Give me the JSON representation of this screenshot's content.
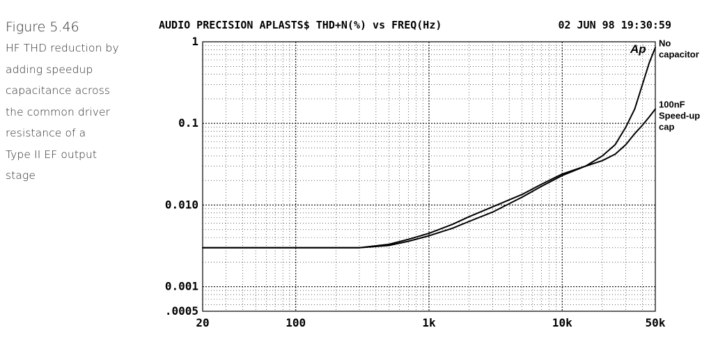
{
  "caption": {
    "title": "Figure 5.46",
    "lines": [
      "HF THD reduction by",
      "adding speedup",
      "capacitance across",
      "the common driver",
      "resistance of a",
      "Type II EF output",
      "stage"
    ]
  },
  "header": {
    "left": "AUDIO PRECISION APLASTS$ THD+N(%) vs FREQ(Hz)",
    "right": "02 JUN 98 19:30:59"
  },
  "logo": "Ap",
  "chart_data": {
    "type": "line",
    "xscale": "log",
    "yscale": "log",
    "xlim": [
      20,
      50000
    ],
    "ylim": [
      0.0005,
      1
    ],
    "grid": true,
    "x_tick_labels": [
      "20",
      "100",
      "1k",
      "10k",
      "50k"
    ],
    "x_tick_values": [
      20,
      100,
      1000,
      10000,
      50000
    ],
    "y_tick_labels": [
      "1",
      "0.1",
      "0.010",
      "0.001",
      ".0005"
    ],
    "y_tick_values": [
      1,
      0.1,
      0.01,
      0.001,
      0.0005
    ],
    "series": [
      {
        "name": "No capacitor",
        "x": [
          20,
          200,
          300,
          500,
          700,
          1000,
          1500,
          2000,
          3000,
          5000,
          7000,
          10000,
          15000,
          20000,
          25000,
          30000,
          35000,
          40000,
          45000,
          50000
        ],
        "y": [
          0.003,
          0.003,
          0.003,
          0.0032,
          0.0036,
          0.0042,
          0.0052,
          0.0063,
          0.0082,
          0.0125,
          0.017,
          0.023,
          0.03,
          0.04,
          0.055,
          0.09,
          0.15,
          0.3,
          0.55,
          0.85
        ]
      },
      {
        "name": "100nF Speed-up cap",
        "x": [
          20,
          200,
          300,
          500,
          700,
          1000,
          1500,
          2000,
          3000,
          5000,
          7000,
          10000,
          15000,
          20000,
          25000,
          30000,
          35000,
          40000,
          45000,
          50000
        ],
        "y": [
          0.003,
          0.003,
          0.003,
          0.0033,
          0.0038,
          0.0045,
          0.0058,
          0.0072,
          0.0095,
          0.0135,
          0.018,
          0.024,
          0.03,
          0.035,
          0.042,
          0.055,
          0.075,
          0.095,
          0.12,
          0.15
        ]
      }
    ],
    "annotations": [
      {
        "for": "No capacitor",
        "lines": [
          "No",
          "capacitor"
        ]
      },
      {
        "for": "100nF Speed-up cap",
        "lines": [
          "100nF",
          "Speed-up",
          "cap"
        ]
      }
    ]
  }
}
